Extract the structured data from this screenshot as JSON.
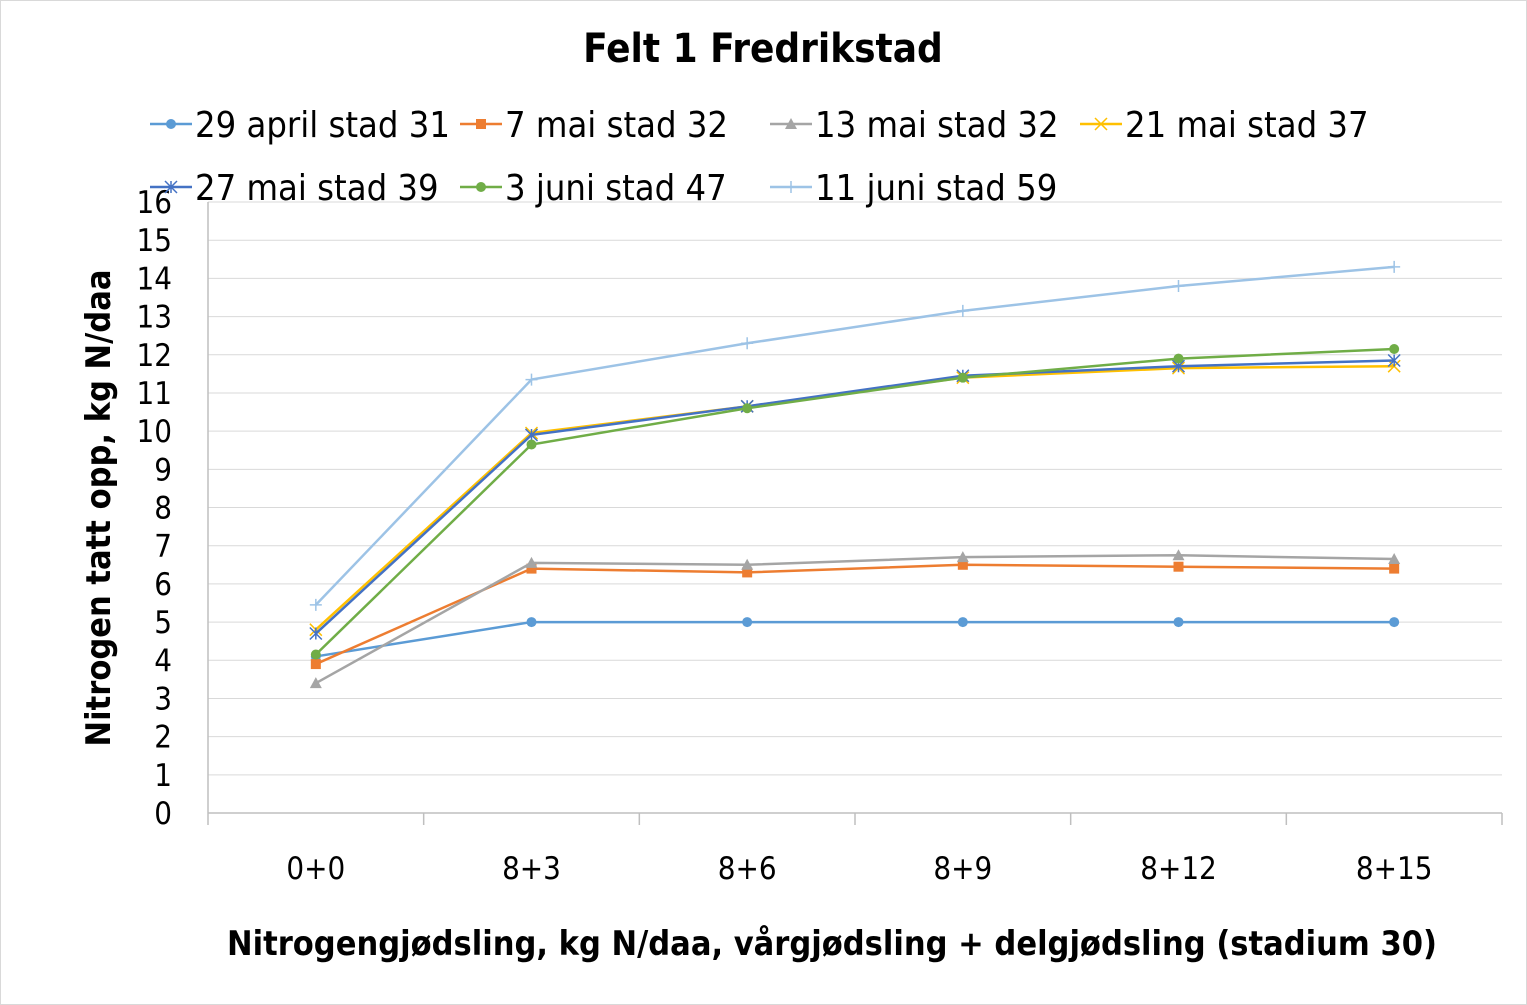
{
  "chart_data": {
    "type": "line",
    "title": "Felt 1 Fredrikstad",
    "xlabel": "Nitrogengjødsling, kg N/daa, vårgjødsling + delgjødsling (stadium 30)",
    "ylabel": "Nitrogen tatt opp, kg N/daa",
    "ylim": [
      0,
      16
    ],
    "yticks": [
      "0",
      "1",
      "2",
      "3",
      "4",
      "5",
      "6",
      "7",
      "8",
      "9",
      "10",
      "11",
      "12",
      "13",
      "14",
      "15",
      "16"
    ],
    "grid": true,
    "legend_position": "top",
    "categories": [
      "0+0",
      "8+3",
      "8+6",
      "8+9",
      "8+12",
      "8+15"
    ],
    "series": [
      {
        "name": "29 april stad 31",
        "color": "#5B9BD5",
        "marker": "circle",
        "values": [
          4.1,
          5.0,
          5.0,
          5.0,
          5.0,
          5.0
        ]
      },
      {
        "name": "7 mai stad 32",
        "color": "#ED7D31",
        "marker": "square",
        "values": [
          3.9,
          6.4,
          6.3,
          6.5,
          6.45,
          6.4
        ]
      },
      {
        "name": "13 mai stad 32",
        "color": "#A5A5A5",
        "marker": "triangle",
        "values": [
          3.4,
          6.55,
          6.5,
          6.7,
          6.75,
          6.65
        ]
      },
      {
        "name": "21 mai stad 37",
        "color": "#FFC000",
        "marker": "x",
        "values": [
          4.8,
          9.95,
          10.65,
          11.4,
          11.65,
          11.7
        ]
      },
      {
        "name": "27 mai stad 39",
        "color": "#4472C4",
        "marker": "star",
        "values": [
          4.7,
          9.9,
          10.65,
          11.45,
          11.7,
          11.85
        ]
      },
      {
        "name": "3 juni stad 47",
        "color": "#70AD47",
        "marker": "circle",
        "values": [
          4.15,
          9.65,
          10.6,
          11.4,
          11.9,
          12.15
        ]
      },
      {
        "name": "11 juni stad 59",
        "color": "#9DC3E6",
        "marker": "plus",
        "values": [
          5.45,
          11.35,
          12.3,
          13.15,
          13.8,
          14.3
        ]
      }
    ]
  }
}
